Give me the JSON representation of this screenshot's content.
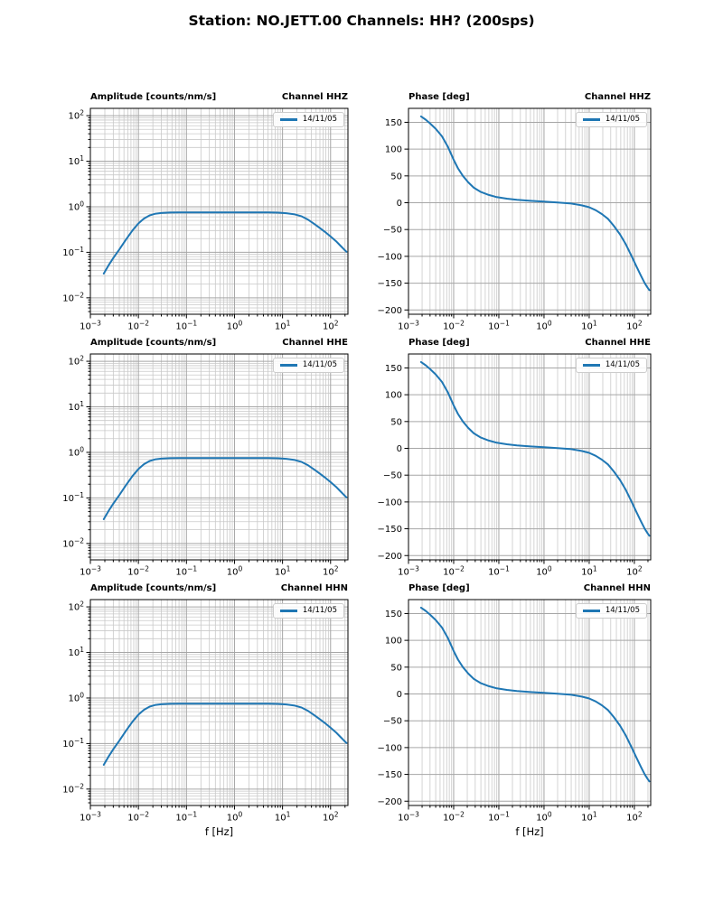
{
  "figure": {
    "title": "Station: NO.JETT.00 Channels: HH? (200sps)"
  },
  "chart_data": {
    "type": "line",
    "layout": "3 rows (channels HHZ, HHE, HHN) x 2 columns (amplitude log-log, phase semilog-x); same response curve in every row",
    "line_color": "#1f77b4",
    "legend_label": "14/11/05",
    "legend_position": "upper right",
    "grid": "major and minor gridlines, gray, on",
    "xlabel": "f [Hz]",
    "x_scale": "log",
    "xlim": [
      0.001,
      230
    ],
    "x_tick_exponents": [
      -3,
      -2,
      -1,
      0,
      1,
      2
    ],
    "rows": [
      {
        "channel": "HHZ",
        "channel_title": "Channel HHZ"
      },
      {
        "channel": "HHE",
        "channel_title": "Channel HHE"
      },
      {
        "channel": "HHN",
        "channel_title": "Channel HHN"
      }
    ],
    "amplitude_axis": {
      "title": "Amplitude [counts/nm/s]",
      "y_scale": "log",
      "ylim": [
        0.0044,
        145
      ],
      "y_tick_exponents": [
        2,
        1,
        0,
        -1,
        -2
      ]
    },
    "phase_axis": {
      "title": "Phase [deg]",
      "ylim": [
        -208,
        176
      ],
      "y_ticks": [
        150,
        100,
        50,
        0,
        -50,
        -100,
        -150,
        -200
      ]
    },
    "series": {
      "amplitude_points": [
        [
          0.0019,
          0.034
        ],
        [
          0.0024,
          0.052
        ],
        [
          0.003,
          0.075
        ],
        [
          0.004,
          0.115
        ],
        [
          0.0055,
          0.19
        ],
        [
          0.0075,
          0.3
        ],
        [
          0.01,
          0.43
        ],
        [
          0.013,
          0.55
        ],
        [
          0.017,
          0.645
        ],
        [
          0.022,
          0.7
        ],
        [
          0.03,
          0.73
        ],
        [
          0.045,
          0.745
        ],
        [
          0.07,
          0.75
        ],
        [
          0.15,
          0.752
        ],
        [
          0.5,
          0.753
        ],
        [
          2,
          0.753
        ],
        [
          5,
          0.75
        ],
        [
          8,
          0.742
        ],
        [
          12,
          0.722
        ],
        [
          18,
          0.68
        ],
        [
          25,
          0.615
        ],
        [
          34,
          0.52
        ],
        [
          45,
          0.425
        ],
        [
          60,
          0.34
        ],
        [
          80,
          0.27
        ],
        [
          100,
          0.222
        ],
        [
          130,
          0.175
        ],
        [
          160,
          0.14
        ],
        [
          190,
          0.116
        ],
        [
          215,
          0.103
        ]
      ],
      "phase_points": [
        [
          0.0019,
          161
        ],
        [
          0.0024,
          155
        ],
        [
          0.003,
          148
        ],
        [
          0.004,
          138
        ],
        [
          0.0055,
          124
        ],
        [
          0.0075,
          104
        ],
        [
          0.01,
          80
        ],
        [
          0.0125,
          64
        ],
        [
          0.016,
          50
        ],
        [
          0.021,
          38
        ],
        [
          0.028,
          28
        ],
        [
          0.04,
          20
        ],
        [
          0.06,
          14.5
        ],
        [
          0.09,
          10.5
        ],
        [
          0.15,
          7.5
        ],
        [
          0.25,
          5.5
        ],
        [
          0.5,
          3.5
        ],
        [
          1,
          2
        ],
        [
          2,
          0.5
        ],
        [
          4,
          -1.5
        ],
        [
          7,
          -5
        ],
        [
          10,
          -8.5
        ],
        [
          14,
          -14
        ],
        [
          19,
          -21
        ],
        [
          26,
          -30
        ],
        [
          35,
          -43
        ],
        [
          48,
          -59
        ],
        [
          65,
          -78
        ],
        [
          85,
          -98
        ],
        [
          110,
          -118
        ],
        [
          140,
          -136
        ],
        [
          170,
          -150
        ],
        [
          195,
          -158
        ],
        [
          215,
          -163
        ]
      ]
    }
  }
}
